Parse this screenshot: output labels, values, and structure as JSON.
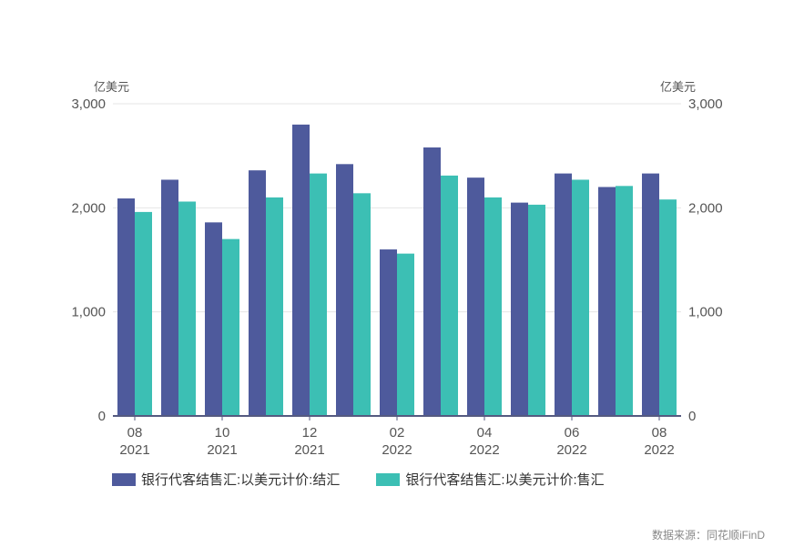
{
  "chart_data": {
    "type": "bar",
    "categories": [
      "2021-08",
      "2021-09",
      "2021-10",
      "2021-11",
      "2021-12",
      "2022-01",
      "2022-02",
      "2022-03",
      "2022-04",
      "2022-05",
      "2022-06",
      "2022-07",
      "2022-08"
    ],
    "tick_labels": [
      {
        "index": 0,
        "month": "08",
        "year": "2021"
      },
      {
        "index": 2,
        "month": "10",
        "year": "2021"
      },
      {
        "index": 4,
        "month": "12",
        "year": "2021"
      },
      {
        "index": 6,
        "month": "02",
        "year": "2022"
      },
      {
        "index": 8,
        "month": "04",
        "year": "2022"
      },
      {
        "index": 10,
        "month": "06",
        "year": "2022"
      },
      {
        "index": 12,
        "month": "08",
        "year": "2022"
      }
    ],
    "series": [
      {
        "name": "银行代客结售汇:以美元计价:结汇",
        "color": "#4e5a9c",
        "values": [
          2090,
          2270,
          1860,
          2360,
          2800,
          2420,
          1600,
          2580,
          2290,
          2050,
          2330,
          2200,
          2330
        ]
      },
      {
        "name": "银行代客结售汇:以美元计价:售汇",
        "color": "#3cbfb4",
        "values": [
          1960,
          2060,
          1700,
          2100,
          2330,
          2140,
          1560,
          2310,
          2100,
          2030,
          2270,
          2210,
          2080
        ]
      }
    ],
    "ylim": [
      0,
      3000
    ],
    "yticks": [
      0,
      1000,
      2000,
      3000
    ],
    "ytick_labels": [
      "0",
      "1,000",
      "2,000",
      "3,000"
    ],
    "yunit_left": "亿美元",
    "yunit_right": "亿美元",
    "grid": true,
    "legend_position": "bottom"
  },
  "source": "数据来源：同花顺iFinD"
}
